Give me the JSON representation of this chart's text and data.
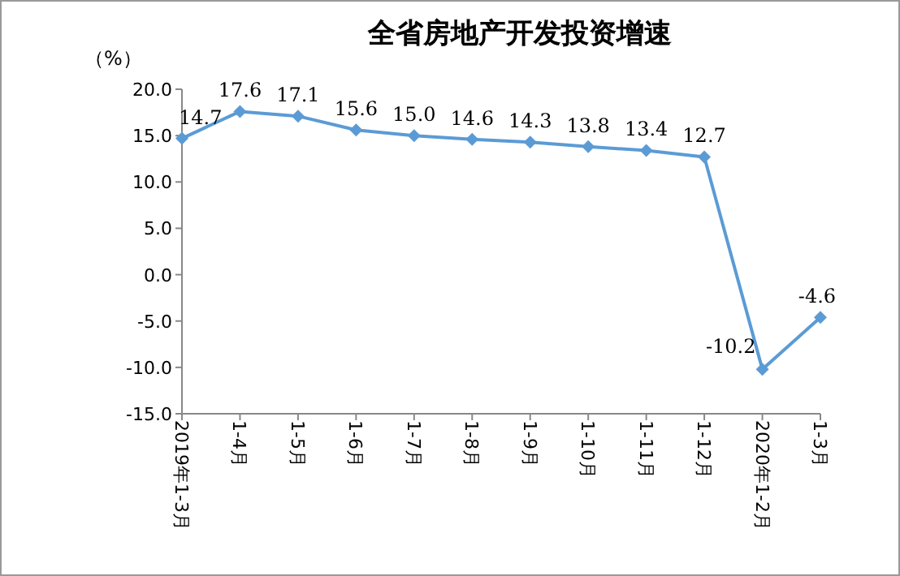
{
  "chart_data": {
    "type": "line",
    "title": "全省房地产开发投资增速",
    "ylabel": "（%）",
    "categories": [
      "2019年1-3月",
      "1-4月",
      "1-5月",
      "1-6月",
      "1-7月",
      "1-8月",
      "1-9月",
      "1-10月",
      "1-11月",
      "1-12月",
      "2020年1-2月",
      "1-3月"
    ],
    "series": [
      {
        "color": "#5b9bd5",
        "values": [
          14.7,
          17.6,
          17.1,
          15.6,
          15.0,
          14.6,
          14.3,
          13.8,
          13.4,
          12.7,
          -10.2,
          -4.6
        ],
        "value_labels": [
          "14.7",
          "17.6",
          "17.1",
          "15.6",
          "15.0",
          "14.6",
          "14.3",
          "13.8",
          "13.4",
          "12.7",
          "-10.2",
          "-4.6"
        ]
      }
    ],
    "ylim": [
      -15,
      20
    ],
    "yticks": [
      {
        "value": -15,
        "label": "-15.0"
      },
      {
        "value": -10,
        "label": "-10.0"
      },
      {
        "value": -5,
        "label": "-5.0"
      },
      {
        "value": 0,
        "label": "0.0"
      },
      {
        "value": 5,
        "label": "5.0"
      },
      {
        "value": 10,
        "label": "10.0"
      },
      {
        "value": 15,
        "label": "15.0"
      },
      {
        "value": 20,
        "label": "20.0"
      }
    ],
    "marker": "diamond",
    "grid": false
  }
}
